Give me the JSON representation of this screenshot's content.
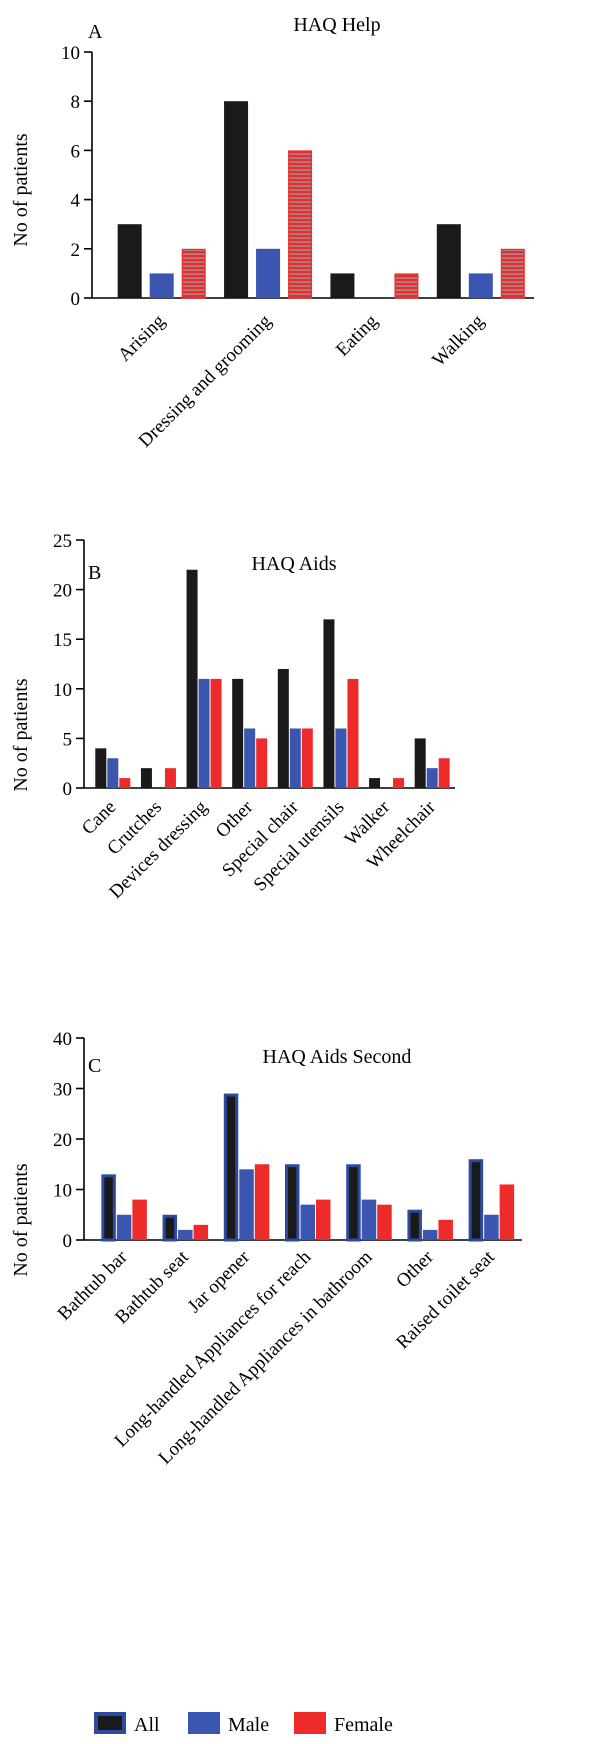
{
  "chart_data": [
    {
      "type": "bar",
      "panel": "A",
      "title": "HAQ Help",
      "ylabel": "No of patients",
      "xlabel": "",
      "ylim": [
        0,
        10
      ],
      "yticks": [
        0,
        2,
        4,
        6,
        8,
        10
      ],
      "categories": [
        "Arising",
        "Dressing and grooming",
        "Eating",
        "Walking"
      ],
      "series": [
        {
          "name": "All",
          "values": [
            3,
            8,
            1,
            3
          ]
        },
        {
          "name": "Male",
          "values": [
            1,
            2,
            0,
            1
          ]
        },
        {
          "name": "Female",
          "values": [
            2,
            6,
            1,
            2
          ]
        }
      ],
      "grid": false
    },
    {
      "type": "bar",
      "panel": "B",
      "title": "HAQ Aids",
      "ylabel": "No of patients",
      "xlabel": "",
      "ylim": [
        0,
        25
      ],
      "yticks": [
        0,
        5,
        10,
        15,
        20,
        25
      ],
      "categories": [
        "Cane",
        "Crutches",
        "Devices dressing",
        "Other",
        "Special chair",
        "Special utensils",
        "Walker",
        "Wheelchair"
      ],
      "series": [
        {
          "name": "All",
          "values": [
            4,
            2,
            22,
            11,
            12,
            17,
            1,
            5
          ]
        },
        {
          "name": "Male",
          "values": [
            3,
            0,
            11,
            6,
            6,
            6,
            0,
            2
          ]
        },
        {
          "name": "Female",
          "values": [
            1,
            2,
            11,
            5,
            6,
            11,
            1,
            3
          ]
        }
      ],
      "grid": false
    },
    {
      "type": "bar",
      "panel": "C",
      "title": "HAQ Aids Second",
      "ylabel": "No of patients",
      "xlabel": "",
      "ylim": [
        0,
        40
      ],
      "yticks": [
        0,
        10,
        20,
        30,
        40
      ],
      "categories": [
        "Bathtub bar",
        "Bathtub seat",
        "Jar opener",
        "Long-handled Appliances for reach",
        "Long-handled Appliances in bathroom",
        "Other",
        "Raised toilet seat"
      ],
      "series": [
        {
          "name": "All",
          "values": [
            13,
            5,
            29,
            15,
            15,
            6,
            16
          ]
        },
        {
          "name": "Male",
          "values": [
            5,
            2,
            14,
            7,
            8,
            2,
            5
          ]
        },
        {
          "name": "Female",
          "values": [
            8,
            3,
            15,
            8,
            7,
            4,
            11
          ]
        }
      ],
      "grid": false
    }
  ],
  "legend": {
    "placement": "bottom-center",
    "items": [
      {
        "label": "All",
        "color": "#1a1a1a",
        "edge": "#2e4a9e"
      },
      {
        "label": "Male",
        "color": "#3a56b0",
        "edge": "#2e4a9e"
      },
      {
        "label": "Female",
        "color": "#ee2b2b",
        "edge": "#ee2b2b"
      }
    ]
  },
  "colors": {
    "all": "#1a1a1a",
    "all_edge_C": "#2e4a9e",
    "male": "#3a56b0",
    "female": "#ee2b2b",
    "female_hatch": "#9aa0a8"
  }
}
